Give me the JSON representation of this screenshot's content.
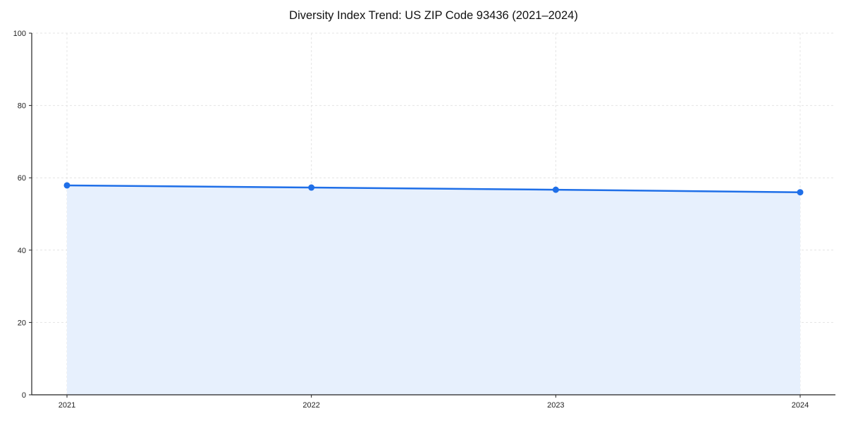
{
  "chart_data": {
    "type": "line",
    "title": "Diversity Index Trend: US ZIP Code 93436 (2021–2024)",
    "x": [
      "2021",
      "2022",
      "2023",
      "2024"
    ],
    "series": [
      {
        "name": "Diversity Index",
        "values": [
          57.9,
          57.3,
          56.7,
          56.0
        ]
      }
    ],
    "xlabel": "",
    "ylabel": "",
    "ylim": [
      0,
      100
    ],
    "yticks": [
      0,
      20,
      40,
      60,
      80,
      100
    ],
    "grid": "dashed",
    "legend_position": "none",
    "line_color": "#1f6fe8",
    "fill_color": "#e7f0fd",
    "marker": "circle"
  }
}
